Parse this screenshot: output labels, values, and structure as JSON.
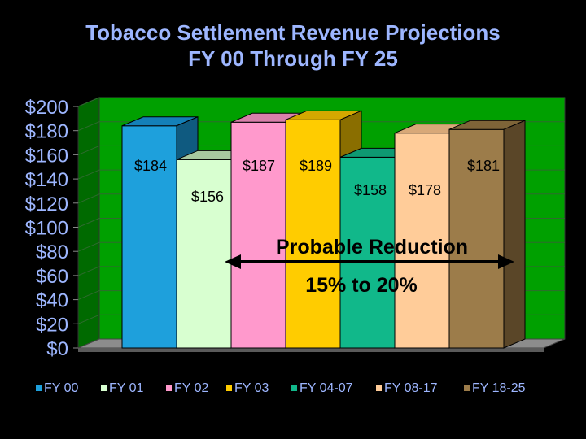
{
  "slide": {
    "title_line1": "Tobacco Settlement Revenue Projections",
    "title_line2": "FY 00 Through FY 25",
    "title_color": "#9db6ff",
    "background": "#000000"
  },
  "chart_data": {
    "type": "bar",
    "title": "Tobacco Settlement Revenue Projections FY 00 Through FY 25",
    "categories": [
      "FY 00",
      "FY 01",
      "FY 02",
      "FY 03",
      "FY 04-07",
      "FY 08-17",
      "FY 18-25"
    ],
    "values": [
      184,
      156,
      187,
      189,
      158,
      178,
      181
    ],
    "data_labels": [
      "$184",
      "$156",
      "$187",
      "$189",
      "$158",
      "$178",
      "$181"
    ],
    "colors": [
      "#1ea0dc",
      "#d8ffd0",
      "#ff99cc",
      "#ffcc00",
      "#11b88a",
      "#ffcc99",
      "#9c7c4a"
    ],
    "side_colors": [
      "#0f5a80",
      "#8aa080",
      "#a0607f",
      "#8a6e00",
      "#0a6b50",
      "#a07a55",
      "#5a4628"
    ],
    "top_colors": [
      "#1480b8",
      "#a8c8a0",
      "#d880aa",
      "#d4a800",
      "#0e9a72",
      "#d8a878",
      "#7e6438"
    ],
    "y_ticks": [
      "$0",
      "$20",
      "$40",
      "$60",
      "$80",
      "$100",
      "$120",
      "$140",
      "$160",
      "$180",
      "$200"
    ],
    "ylim": [
      0,
      200
    ],
    "legend": [
      "FY 00",
      "FY 01",
      "FY 02",
      "FY 03",
      "FY 04-07",
      "FY 08-17",
      "FY 18-25"
    ],
    "legend_placement": "bottom",
    "plot_background": "#00a000",
    "grid": true,
    "annotations": {
      "line1": "Probable Reduction",
      "line2": "15% to 20%"
    }
  }
}
